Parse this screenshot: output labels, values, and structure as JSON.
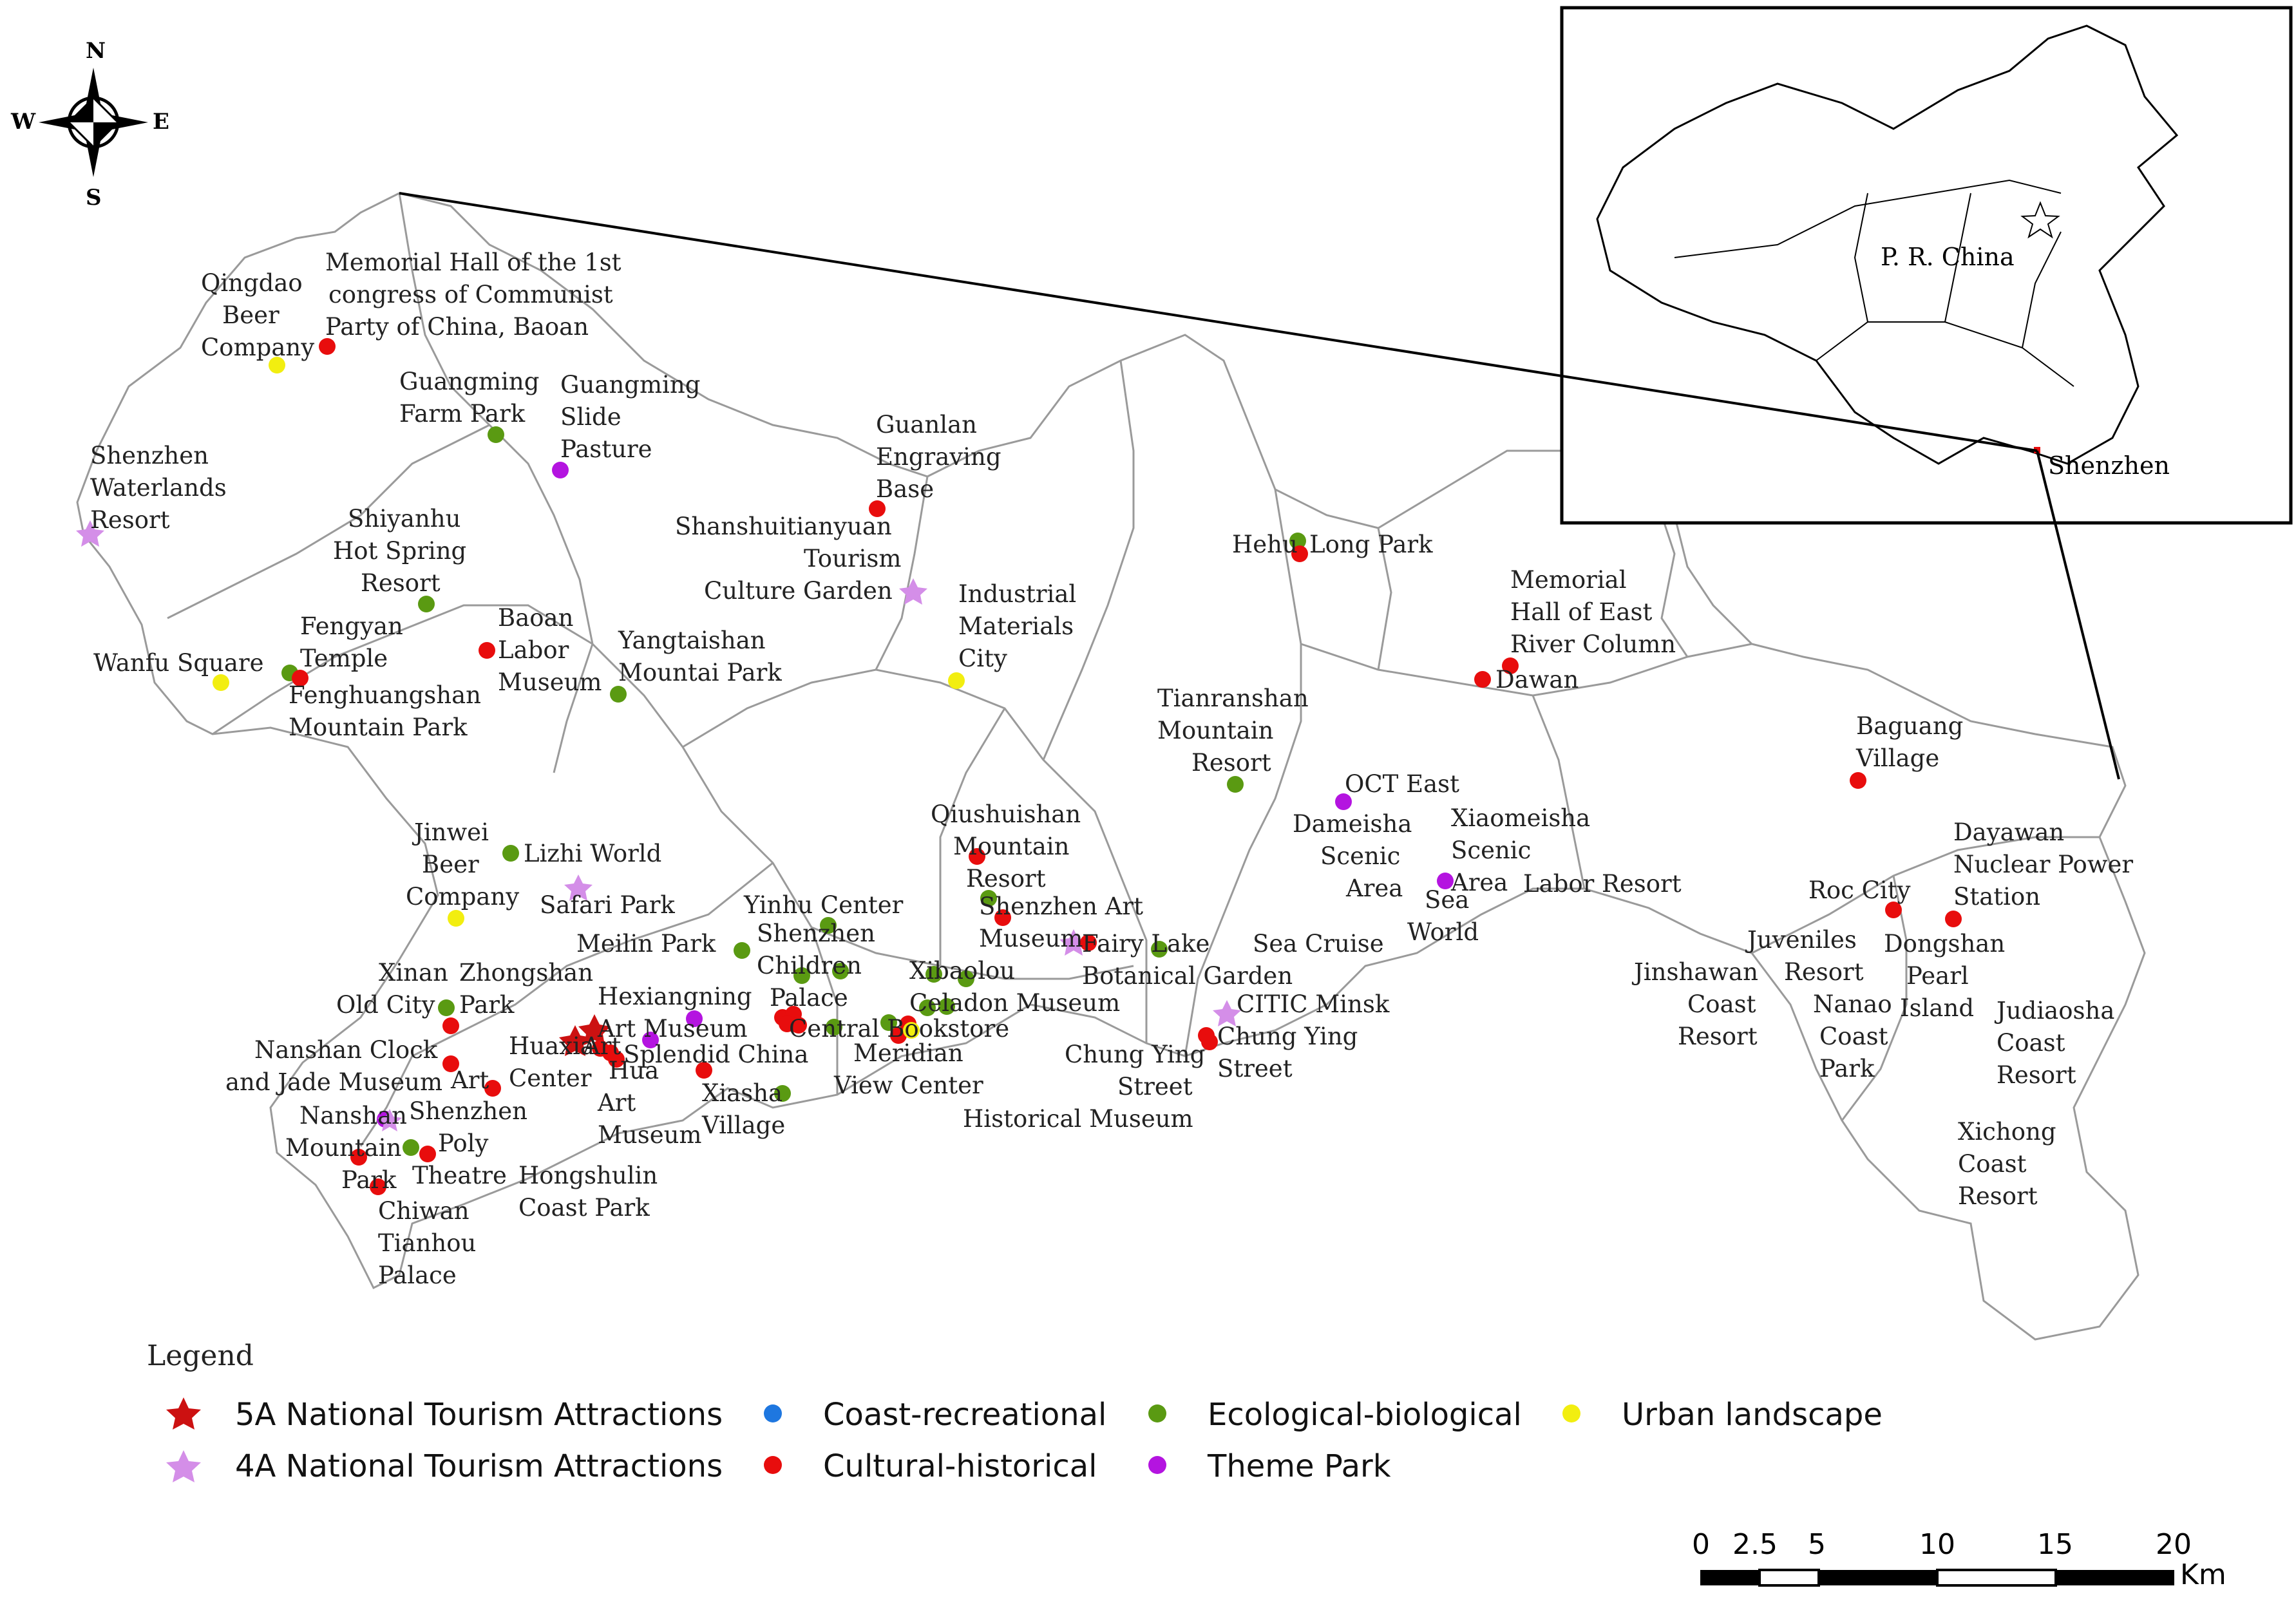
{
  "legend": {
    "title": "Legend",
    "items": [
      {
        "label": "5A National Tourism Attractions",
        "symbol": "star",
        "color": "#cc1111"
      },
      {
        "label": "4A National Tourism Attractions",
        "symbol": "star",
        "color": "#d48ee8"
      },
      {
        "label": "Coast-recreational",
        "symbol": "dot",
        "color": "#1e77e0"
      },
      {
        "label": "Cultural-historical",
        "symbol": "dot",
        "color": "#e80d0d"
      },
      {
        "label": "Ecological-biological",
        "symbol": "dot",
        "color": "#5a9a12"
      },
      {
        "label": "Theme Park",
        "symbol": "dot",
        "color": "#b414e0"
      },
      {
        "label": "Urban landscape",
        "symbol": "dot",
        "color": "#f2ee10"
      }
    ]
  },
  "compass": {
    "n": "N",
    "s": "S",
    "e": "E",
    "w": "W"
  },
  "scale": {
    "ticks": [
      "0",
      "2.5",
      "5",
      "10",
      "15",
      "20"
    ],
    "unit": "Km"
  },
  "inset": {
    "country_label": "P. R. China",
    "city_label": "Shenzhen"
  },
  "labels": [
    [
      "Qingdao",
      "Beer",
      "Company"
    ],
    [
      "Memorial Hall of the 1st",
      "congress of Communist",
      "Party of China, Baoan"
    ],
    [
      "Guangming",
      "Farm Park"
    ],
    [
      "Guangming",
      "Slide",
      "Pasture"
    ],
    [
      "Shenzhen",
      "Waterlands",
      "Resort"
    ],
    [
      "Shiyanhu",
      "Hot Spring",
      "Resort"
    ],
    [
      "Fengyan",
      "Temple"
    ],
    [
      "Baoan",
      "Labor",
      "Museum"
    ],
    [
      "Wanfu Square"
    ],
    [
      "Fenghuangshan",
      "Mountain Park"
    ],
    [
      "Yangtaishan",
      "Mountai Park"
    ],
    [
      "Guanlan",
      "Engraving",
      "Base"
    ],
    [
      "Shanshuitianyuan",
      "Tourism",
      "Culture Garden"
    ],
    [
      "Industrial",
      "Materials",
      "City"
    ],
    [
      "Hehu",
      "Long Park"
    ],
    [
      "Memorial",
      "Hall of East",
      "River Column"
    ],
    [
      "Dawan"
    ],
    [
      "Tianranshan",
      "Mountain",
      "Resort"
    ],
    [
      "OCT East"
    ],
    [
      "Baguang",
      "Village"
    ],
    [
      "Jinwei",
      "Beer",
      "Company"
    ],
    [
      "Lizhi World"
    ],
    [
      "Safari Park"
    ],
    [
      "Qiushuishan",
      "Mountain",
      "Resort"
    ],
    [
      "Yinhu Center"
    ],
    [
      "Meilin Park"
    ],
    [
      "Shenzhen",
      "Children",
      "Palace"
    ],
    [
      "Shenzhen Art",
      "Museum"
    ],
    [
      "Fairy Lake",
      "Botanical Garden"
    ],
    [
      "Dameisha",
      "Scenic",
      "Area"
    ],
    [
      "Xiaomeisha",
      "Scenic",
      "Area"
    ],
    [
      "Labor Resort"
    ],
    [
      "Sea",
      "World"
    ],
    [
      "Sea Cruise"
    ],
    [
      "Roc City"
    ],
    [
      "Dayawan",
      "Nuclear Power",
      "Station"
    ],
    [
      "Xinan",
      "Old City"
    ],
    [
      "Zhongshan",
      "Park"
    ],
    [
      "Hexiangning",
      "Art Museum"
    ],
    [
      "Xibaolou",
      "Celadon Museum"
    ],
    [
      "Central Bookstore"
    ],
    [
      "Meridian",
      "View Center"
    ],
    [
      "CITIC Minsk"
    ],
    [
      "Chung Ying",
      "Street"
    ],
    [
      "Chung Ying",
      "Street",
      "Historical Museum"
    ],
    [
      "Juveniles",
      "Resort"
    ],
    [
      "Dongshan",
      "Pearl",
      "Island"
    ],
    [
      "Jinshawan",
      "Coast",
      "Resort"
    ],
    [
      "Nanao",
      "Coast",
      "Park"
    ],
    [
      "Judiaosha",
      "Coast",
      "Resort"
    ],
    [
      "Xichong",
      "Coast",
      "Resort"
    ],
    [
      "Nanshan Clock",
      "and Jade Museum"
    ],
    [
      "Huaxia",
      "Art",
      "Center"
    ],
    [
      "Splendid China"
    ],
    [
      "Hua",
      "Art",
      "Museum"
    ],
    [
      "Xiasha",
      "Village"
    ],
    [
      "Art",
      "Center"
    ],
    [
      "Nanshan",
      "Mountain",
      "Park"
    ],
    [
      "Shenzhen",
      "Poly",
      "Theatre"
    ],
    [
      "Hongshulin",
      "Coast Park"
    ],
    [
      "Chiwan",
      "Tianhou",
      "Palace"
    ]
  ]
}
